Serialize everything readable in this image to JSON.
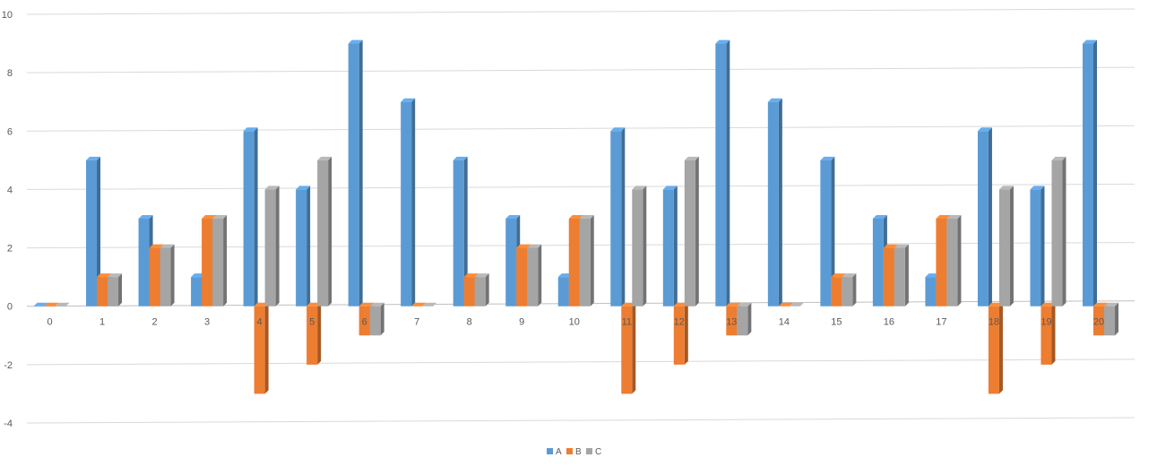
{
  "chart_data": {
    "type": "bar",
    "title": "",
    "xlabel": "",
    "ylabel": "",
    "categories": [
      "0",
      "1",
      "2",
      "3",
      "4",
      "5",
      "6",
      "7",
      "8",
      "9",
      "10",
      "11",
      "12",
      "13",
      "14",
      "15",
      "16",
      "17",
      "18",
      "19",
      "20"
    ],
    "series": [
      {
        "name": "A",
        "color": "#5B9BD5",
        "values": [
          0,
          5,
          3,
          1,
          6,
          4,
          9,
          7,
          5,
          3,
          1,
          6,
          4,
          9,
          7,
          5,
          3,
          1,
          6,
          4,
          9
        ]
      },
      {
        "name": "B",
        "color": "#ED7D31",
        "values": [
          0,
          1,
          2,
          3,
          -3,
          -2,
          -1,
          0,
          1,
          2,
          3,
          -3,
          -2,
          -1,
          0,
          1,
          2,
          3,
          -3,
          -2,
          -1
        ]
      },
      {
        "name": "C",
        "color": "#A5A5A5",
        "values": [
          0,
          1,
          2,
          3,
          4,
          5,
          -1,
          0,
          1,
          2,
          3,
          4,
          5,
          -1,
          0,
          1,
          2,
          3,
          4,
          5,
          -1
        ]
      }
    ],
    "ylim": [
      -4,
      10
    ],
    "yticks": [
      -4,
      -2,
      0,
      2,
      4,
      6,
      8,
      10
    ],
    "grid": true,
    "legend_position": "bottom"
  }
}
